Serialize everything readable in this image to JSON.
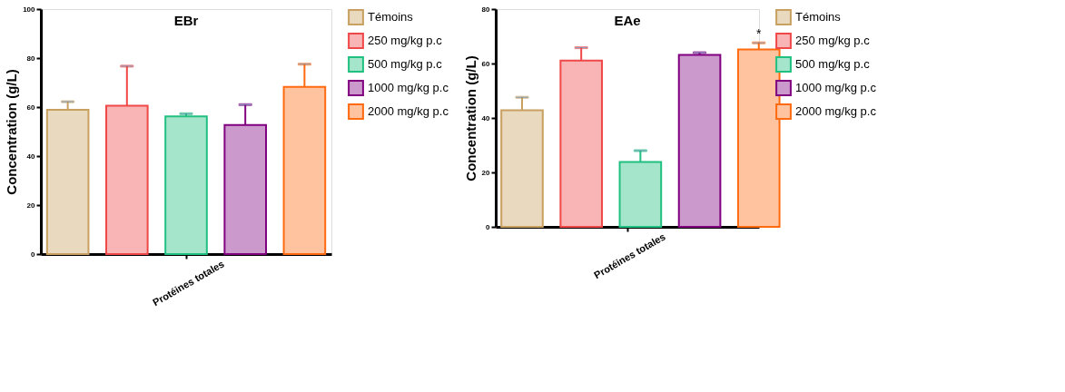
{
  "chart_data": [
    {
      "type": "bar",
      "title": "EBr",
      "ylabel": "Concentration (g/L)",
      "categories": [
        "Protéines totales"
      ],
      "ylim": [
        0,
        100
      ],
      "yticks": [
        0,
        20,
        40,
        60,
        80,
        100
      ],
      "legend": "right",
      "series": [
        {
          "name": "Témoins",
          "color": "#c8a060",
          "values": [
            58.9
          ],
          "errors": [
            3.3
          ]
        },
        {
          "name": "250 mg/kg p.c",
          "color": "#f04848",
          "values": [
            60.6
          ],
          "errors": [
            16.1
          ]
        },
        {
          "name": "500 mg/kg p.c",
          "color": "#20c080",
          "values": [
            56.2
          ],
          "errors": [
            1.1
          ]
        },
        {
          "name": "1000 mg/kg p.c",
          "color": "#800080",
          "values": [
            52.7
          ],
          "errors": [
            8.3
          ]
        },
        {
          "name": "2000 mg/kg p.c",
          "color": "#ff6a10",
          "values": [
            68.2
          ],
          "errors": [
            9.3
          ]
        }
      ]
    },
    {
      "type": "bar",
      "title": "EAe",
      "ylabel": "Concentration (g/L)",
      "categories": [
        "Protéines totales"
      ],
      "ylim": [
        0,
        80
      ],
      "yticks": [
        0,
        20,
        40,
        60,
        80
      ],
      "legend": "right",
      "annotations": [
        "*"
      ],
      "series": [
        {
          "name": "Témoins",
          "color": "#c8a060",
          "values": [
            42.8
          ],
          "errors": [
            4.8
          ]
        },
        {
          "name": "250 mg/kg p.c",
          "color": "#f04848",
          "values": [
            61.1
          ],
          "errors": [
            4.7
          ]
        },
        {
          "name": "500 mg/kg p.c",
          "color": "#20c080",
          "values": [
            23.8
          ],
          "errors": [
            4.2
          ]
        },
        {
          "name": "1000 mg/kg p.c",
          "color": "#800080",
          "values": [
            63.2
          ],
          "errors": [
            0.8
          ]
        },
        {
          "name": "2000 mg/kg p.c",
          "color": "#ff6a10",
          "values": [
            65.2
          ],
          "errors": [
            2.4
          ]
        }
      ]
    }
  ]
}
